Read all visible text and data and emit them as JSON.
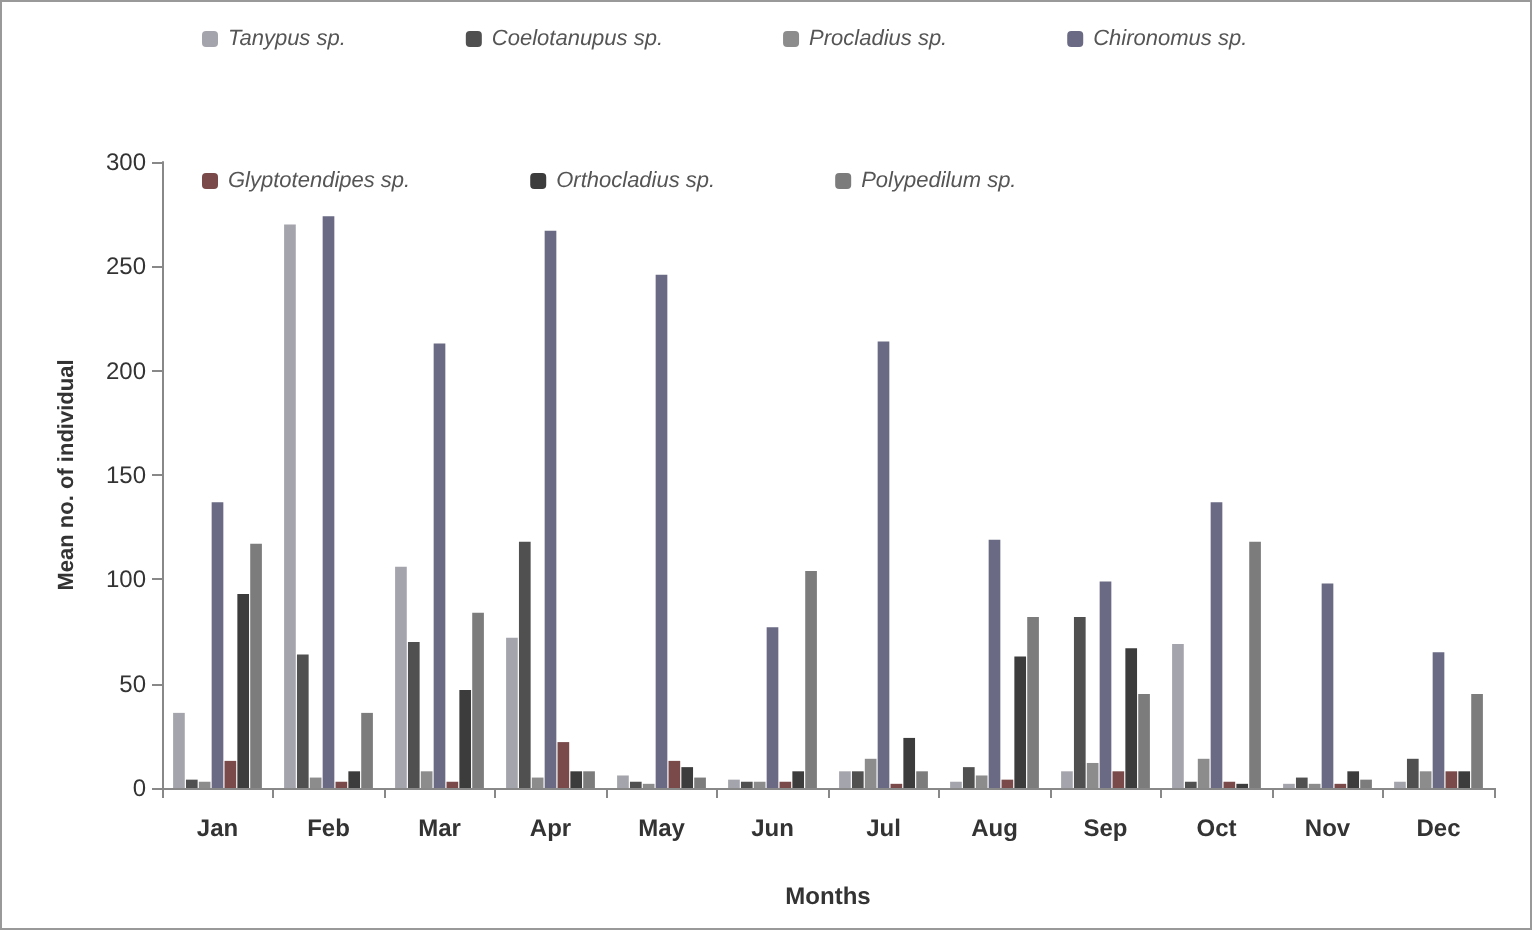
{
  "chart_data": {
    "type": "bar",
    "xlabel": "Months",
    "ylabel": "Mean no. of individual",
    "categories": [
      "Jan",
      "Feb",
      "Mar",
      "Apr",
      "May",
      "Jun",
      "Jul",
      "Aug",
      "Sep",
      "Oct",
      "Nov",
      "Dec"
    ],
    "series": [
      {
        "name": "Tanypus sp.",
        "color": "#a4a4ac",
        "values": [
          36,
          270,
          106,
          72,
          6,
          4,
          8,
          3,
          8,
          69,
          2,
          3
        ]
      },
      {
        "name": "Coelotanupus sp.",
        "color": "#505050",
        "values": [
          4,
          64,
          70,
          118,
          3,
          3,
          8,
          10,
          82,
          3,
          5,
          14
        ]
      },
      {
        "name": "Procladius sp.",
        "color": "#8c8c8c",
        "values": [
          3,
          5,
          8,
          5,
          2,
          3,
          14,
          6,
          12,
          14,
          2,
          8
        ]
      },
      {
        "name": "Chironomus sp.",
        "color": "#6a6a84",
        "values": [
          137,
          274,
          213,
          267,
          246,
          77,
          214,
          119,
          99,
          137,
          98,
          65
        ]
      },
      {
        "name": "Glyptotendipes sp.",
        "color": "#7a4a4a",
        "values": [
          13,
          3,
          3,
          22,
          13,
          3,
          2,
          4,
          8,
          3,
          2,
          8
        ]
      },
      {
        "name": "Orthocladius sp.",
        "color": "#3c3c3c",
        "values": [
          93,
          8,
          47,
          8,
          10,
          8,
          24,
          63,
          67,
          2,
          8,
          8
        ]
      },
      {
        "name": "Polypedilum sp.",
        "color": "#7c7c7c",
        "values": [
          117,
          36,
          84,
          8,
          5,
          104,
          8,
          82,
          45,
          118,
          4,
          45
        ]
      }
    ],
    "ylim": [
      0,
      300
    ],
    "yticks": [
      0,
      50,
      100,
      150,
      200,
      250,
      300
    ],
    "grid": false,
    "legend": "top"
  }
}
